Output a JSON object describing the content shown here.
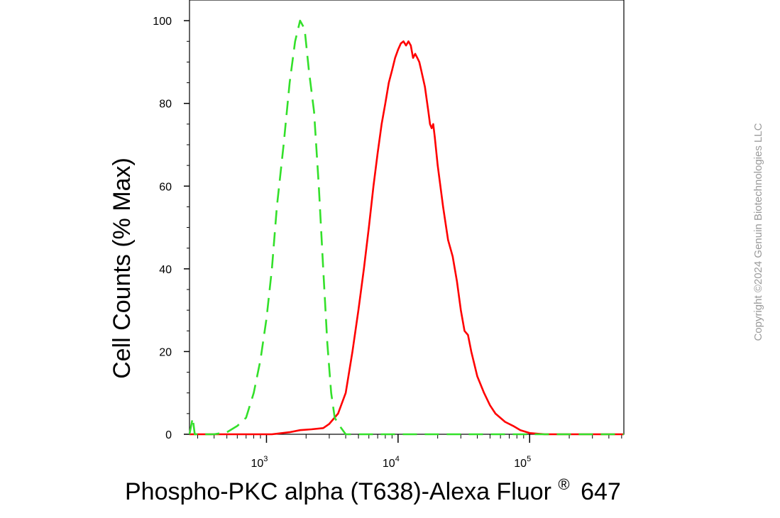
{
  "chart_data": {
    "type": "line",
    "ylabel": "Cell Counts (% Max)",
    "xlabel": {
      "main": "Phospho-PKC alpha (T638)-Alexa Fluor",
      "reg": "®",
      "suffix": "647"
    },
    "xscale": "log",
    "xlim": [
      260,
      520000
    ],
    "ylim": [
      0,
      105
    ],
    "y_ticks": [
      0,
      20,
      40,
      60,
      80,
      100
    ],
    "x_ticks": [
      {
        "value": 1000,
        "base": "10",
        "exp": "3"
      },
      {
        "value": 10000,
        "base": "10",
        "exp": "4"
      },
      {
        "value": 100000,
        "base": "10",
        "exp": "5"
      }
    ],
    "grid": false,
    "legend": "none",
    "series": [
      {
        "color": "#ff0000",
        "style": "solid",
        "points": [
          [
            260,
            0
          ],
          [
            1100,
            0
          ],
          [
            1500,
            0.5
          ],
          [
            1800,
            1
          ],
          [
            2200,
            1.2
          ],
          [
            2700,
            1.5
          ],
          [
            3000,
            2.5
          ],
          [
            3500,
            5
          ],
          [
            4000,
            10
          ],
          [
            4500,
            20
          ],
          [
            5000,
            30
          ],
          [
            5500,
            40
          ],
          [
            6000,
            50
          ],
          [
            6500,
            60
          ],
          [
            7000,
            68
          ],
          [
            7500,
            75
          ],
          [
            8000,
            80
          ],
          [
            8500,
            85
          ],
          [
            9000,
            88
          ],
          [
            9500,
            91
          ],
          [
            10000,
            93
          ],
          [
            10500,
            94.5
          ],
          [
            11000,
            95
          ],
          [
            11500,
            94
          ],
          [
            12000,
            95
          ],
          [
            12500,
            94
          ],
          [
            13000,
            91
          ],
          [
            13500,
            92
          ],
          [
            14000,
            91
          ],
          [
            14500,
            90
          ],
          [
            15000,
            88
          ],
          [
            16000,
            84
          ],
          [
            17000,
            78
          ],
          [
            17500,
            75
          ],
          [
            18000,
            74
          ],
          [
            18500,
            75
          ],
          [
            19000,
            72
          ],
          [
            20000,
            65
          ],
          [
            22000,
            55
          ],
          [
            24000,
            47
          ],
          [
            26000,
            43
          ],
          [
            28000,
            37
          ],
          [
            30000,
            30
          ],
          [
            32000,
            25
          ],
          [
            34000,
            24
          ],
          [
            36000,
            20
          ],
          [
            40000,
            14
          ],
          [
            45000,
            10
          ],
          [
            50000,
            7
          ],
          [
            55000,
            5
          ],
          [
            65000,
            3
          ],
          [
            75000,
            2
          ],
          [
            85000,
            1
          ],
          [
            100000,
            0.3
          ],
          [
            130000,
            0
          ],
          [
            520000,
            0
          ]
        ]
      },
      {
        "color": "#33e02a",
        "style": "dashed",
        "points": [
          [
            260,
            0
          ],
          [
            275,
            4
          ],
          [
            285,
            0
          ],
          [
            300,
            0
          ],
          [
            400,
            0
          ],
          [
            500,
            0.5
          ],
          [
            600,
            2
          ],
          [
            700,
            4
          ],
          [
            800,
            10
          ],
          [
            900,
            18
          ],
          [
            1000,
            28
          ],
          [
            1100,
            40
          ],
          [
            1200,
            55
          ],
          [
            1350,
            70
          ],
          [
            1500,
            85
          ],
          [
            1650,
            95
          ],
          [
            1800,
            100
          ],
          [
            1950,
            98
          ],
          [
            2100,
            88
          ],
          [
            2300,
            78
          ],
          [
            2500,
            60
          ],
          [
            2700,
            40
          ],
          [
            2900,
            22
          ],
          [
            3100,
            10
          ],
          [
            3300,
            4
          ],
          [
            3600,
            2
          ],
          [
            4000,
            0
          ],
          [
            520000,
            0
          ]
        ]
      }
    ]
  },
  "watermark": "Copyright ©2024 Genuin Biotechnologies LLC"
}
